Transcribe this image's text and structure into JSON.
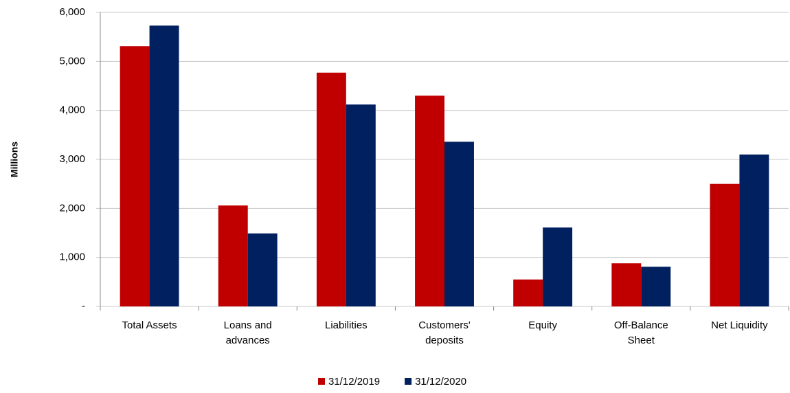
{
  "chart_data": {
    "type": "bar",
    "y_axis_label": "Millions",
    "categories": [
      "Total Assets",
      "Loans and advances",
      "Liabilities",
      "Customers' deposits",
      "Equity",
      "Off-Balance Sheet",
      "Net Liquidity"
    ],
    "series": [
      {
        "name": "31/12/2019",
        "color": "#c00000",
        "values": [
          5310,
          2060,
          4770,
          4300,
          550,
          880,
          2500
        ]
      },
      {
        "name": "31/12/2020",
        "color": "#002060",
        "values": [
          5730,
          1490,
          4120,
          3360,
          1610,
          810,
          3100
        ]
      }
    ],
    "ylim": [
      0,
      6000
    ],
    "yticks": [
      {
        "value": 0,
        "label": "-"
      },
      {
        "value": 1000,
        "label": "1,000"
      },
      {
        "value": 2000,
        "label": "2,000"
      },
      {
        "value": 3000,
        "label": "3,000"
      },
      {
        "value": 4000,
        "label": "4,000"
      },
      {
        "value": 5000,
        "label": "5,000"
      },
      {
        "value": 6000,
        "label": "6,000"
      }
    ],
    "grid": true,
    "legend": "bottom"
  }
}
